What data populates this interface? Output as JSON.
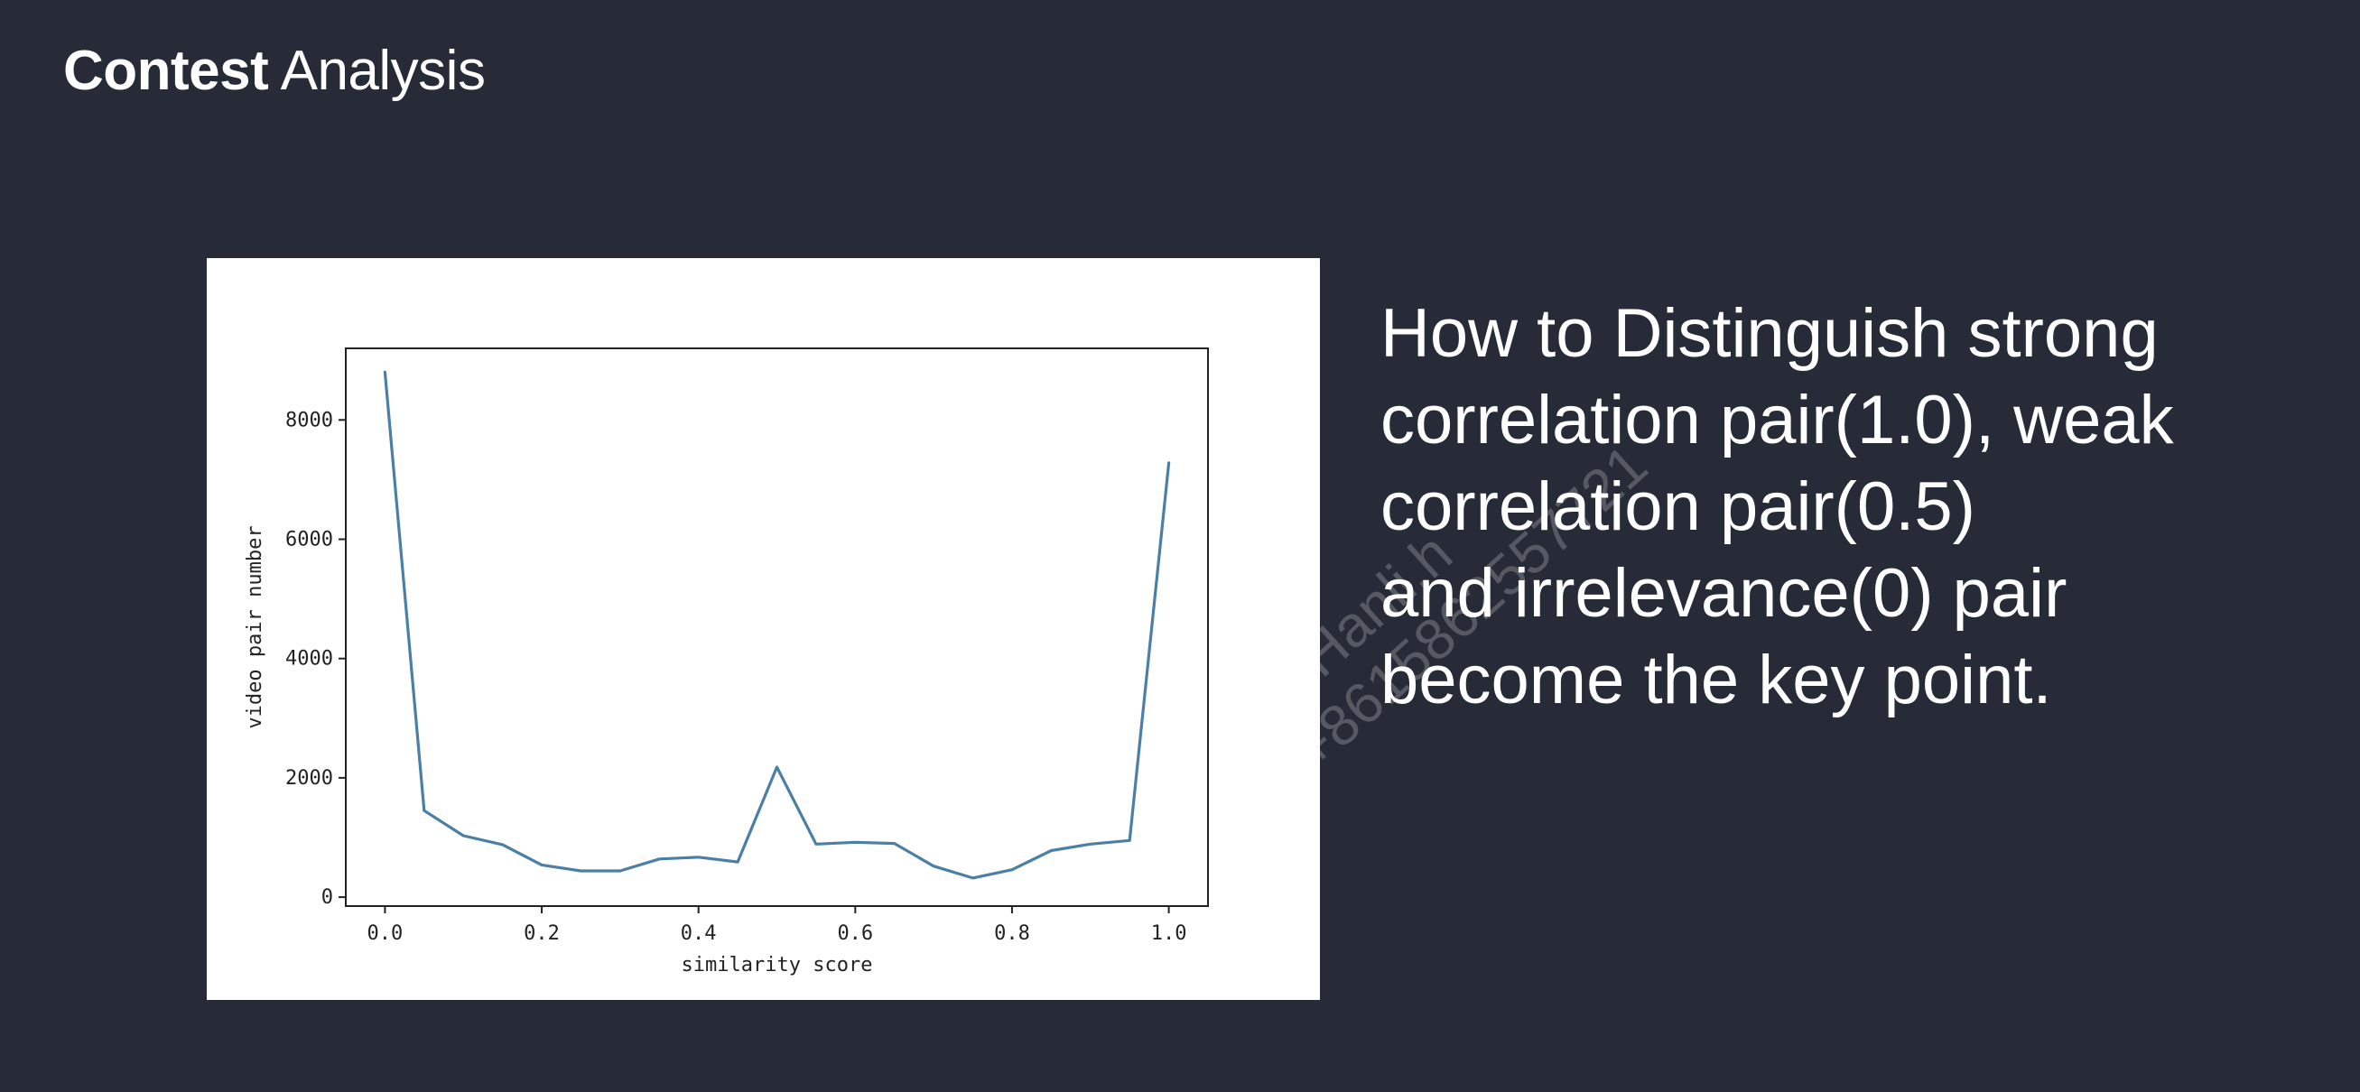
{
  "header": {
    "title_strong": "Contest",
    "title_rest": " Analysis"
  },
  "colors": {
    "background": "#272a37",
    "chart_line": "#4a7fa6",
    "text": "#ffffff"
  },
  "side_text": {
    "lines": [
      "How to Distinguish strong",
      "correlation pair(1.0), weak",
      "correlation pair(0.5)",
      "and irrelevance(0) pair",
      "become the key point."
    ]
  },
  "watermark": {
    "line1": "MrHanli.h",
    "line2": "+8615862557721"
  },
  "chart_data": {
    "type": "line",
    "title": "",
    "xlabel": "similarity score",
    "ylabel": "video pair number",
    "xlim": [
      -0.05,
      1.05
    ],
    "ylim": [
      -150,
      9200
    ],
    "x_ticks": [
      0.0,
      0.2,
      0.4,
      0.6,
      0.8,
      1.0
    ],
    "x_tick_labels": [
      "0.0",
      "0.2",
      "0.4",
      "0.6",
      "0.8",
      "1.0"
    ],
    "y_ticks": [
      0,
      2000,
      4000,
      6000,
      8000
    ],
    "y_tick_labels": [
      "0",
      "2000",
      "4000",
      "6000",
      "8000"
    ],
    "grid": false,
    "series": [
      {
        "x": [
          0.0,
          0.05,
          0.1,
          0.15,
          0.2,
          0.25,
          0.3,
          0.35,
          0.4,
          0.45,
          0.5,
          0.55,
          0.6,
          0.65,
          0.7,
          0.75,
          0.8,
          0.85,
          0.9,
          0.95,
          1.0
        ],
        "y": [
          8800,
          1450,
          1030,
          880,
          540,
          440,
          440,
          640,
          670,
          590,
          2180,
          890,
          920,
          900,
          520,
          320,
          460,
          780,
          890,
          950,
          7280
        ]
      }
    ]
  }
}
